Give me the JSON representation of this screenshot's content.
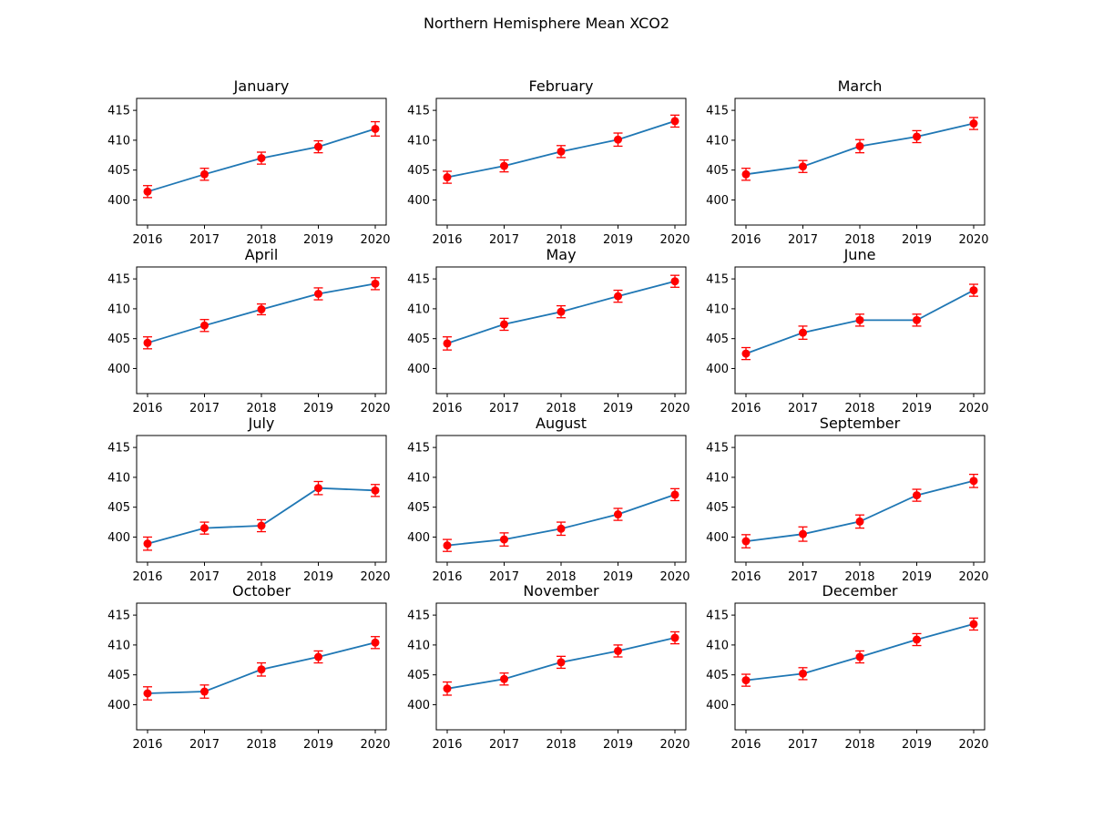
{
  "figure": {
    "suptitle": "Northern Hemisphere Mean XCO2"
  },
  "style": {
    "line_color": "#1f77b4",
    "marker_color": "#ff0000",
    "errorbar_color": "#ff0000",
    "axes_color": "#000000",
    "background": "#ffffff"
  },
  "chart_data": [
    {
      "type": "line",
      "title": "January",
      "x": [
        2016,
        2017,
        2018,
        2019,
        2020
      ],
      "y": [
        401.4,
        404.3,
        407.0,
        408.9,
        411.9
      ],
      "yerr": [
        1.0,
        1.0,
        1.0,
        1.0,
        1.2
      ],
      "xticks": [
        2016,
        2017,
        2018,
        2019,
        2020
      ],
      "yticks": [
        400,
        405,
        410,
        415
      ],
      "ylim": [
        395.8,
        417.0
      ],
      "grid": false
    },
    {
      "type": "line",
      "title": "February",
      "x": [
        2016,
        2017,
        2018,
        2019,
        2020
      ],
      "y": [
        403.8,
        405.7,
        408.1,
        410.1,
        413.2
      ],
      "yerr": [
        1.0,
        1.0,
        1.0,
        1.1,
        1.0
      ],
      "xticks": [
        2016,
        2017,
        2018,
        2019,
        2020
      ],
      "yticks": [
        400,
        405,
        410,
        415
      ],
      "ylim": [
        395.8,
        417.0
      ],
      "grid": false
    },
    {
      "type": "line",
      "title": "March",
      "x": [
        2016,
        2017,
        2018,
        2019,
        2020
      ],
      "y": [
        404.3,
        405.6,
        409.0,
        410.6,
        412.8
      ],
      "yerr": [
        1.0,
        1.0,
        1.1,
        1.0,
        1.0
      ],
      "xticks": [
        2016,
        2017,
        2018,
        2019,
        2020
      ],
      "yticks": [
        400,
        405,
        410,
        415
      ],
      "ylim": [
        395.8,
        417.0
      ],
      "grid": false
    },
    {
      "type": "line",
      "title": "April",
      "x": [
        2016,
        2017,
        2018,
        2019,
        2020
      ],
      "y": [
        404.3,
        407.2,
        409.9,
        412.5,
        414.2
      ],
      "yerr": [
        1.0,
        1.0,
        0.9,
        1.0,
        1.0
      ],
      "xticks": [
        2016,
        2017,
        2018,
        2019,
        2020
      ],
      "yticks": [
        400,
        405,
        410,
        415
      ],
      "ylim": [
        395.8,
        417.0
      ],
      "grid": false
    },
    {
      "type": "line",
      "title": "May",
      "x": [
        2016,
        2017,
        2018,
        2019,
        2020
      ],
      "y": [
        404.2,
        407.4,
        409.5,
        412.1,
        414.6
      ],
      "yerr": [
        1.1,
        1.0,
        1.0,
        1.0,
        1.0
      ],
      "xticks": [
        2016,
        2017,
        2018,
        2019,
        2020
      ],
      "yticks": [
        400,
        405,
        410,
        415
      ],
      "ylim": [
        395.8,
        417.0
      ],
      "grid": false
    },
    {
      "type": "line",
      "title": "June",
      "x": [
        2016,
        2017,
        2018,
        2019,
        2020
      ],
      "y": [
        402.5,
        406.0,
        408.1,
        408.1,
        413.1
      ],
      "yerr": [
        1.0,
        1.1,
        1.0,
        1.0,
        1.0
      ],
      "xticks": [
        2016,
        2017,
        2018,
        2019,
        2020
      ],
      "yticks": [
        400,
        405,
        410,
        415
      ],
      "ylim": [
        395.8,
        417.0
      ],
      "grid": false
    },
    {
      "type": "line",
      "title": "July",
      "x": [
        2016,
        2017,
        2018,
        2019,
        2020
      ],
      "y": [
        398.9,
        401.5,
        401.9,
        408.2,
        407.8
      ],
      "yerr": [
        1.1,
        1.0,
        1.0,
        1.1,
        1.0
      ],
      "xticks": [
        2016,
        2017,
        2018,
        2019,
        2020
      ],
      "yticks": [
        400,
        405,
        410,
        415
      ],
      "ylim": [
        395.8,
        417.0
      ],
      "grid": false
    },
    {
      "type": "line",
      "title": "August",
      "x": [
        2016,
        2017,
        2018,
        2019,
        2020
      ],
      "y": [
        398.6,
        399.6,
        401.4,
        403.8,
        407.1
      ],
      "yerr": [
        1.0,
        1.1,
        1.1,
        1.0,
        1.0
      ],
      "xticks": [
        2016,
        2017,
        2018,
        2019,
        2020
      ],
      "yticks": [
        400,
        405,
        410,
        415
      ],
      "ylim": [
        395.8,
        417.0
      ],
      "grid": false
    },
    {
      "type": "line",
      "title": "September",
      "x": [
        2016,
        2017,
        2018,
        2019,
        2020
      ],
      "y": [
        399.3,
        400.5,
        402.6,
        407.0,
        409.4
      ],
      "yerr": [
        1.1,
        1.2,
        1.1,
        1.0,
        1.1
      ],
      "xticks": [
        2016,
        2017,
        2018,
        2019,
        2020
      ],
      "yticks": [
        400,
        405,
        410,
        415
      ],
      "ylim": [
        395.8,
        417.0
      ],
      "grid": false
    },
    {
      "type": "line",
      "title": "October",
      "x": [
        2016,
        2017,
        2018,
        2019,
        2020
      ],
      "y": [
        401.9,
        402.2,
        405.9,
        408.0,
        410.4
      ],
      "yerr": [
        1.1,
        1.1,
        1.1,
        1.0,
        1.0
      ],
      "xticks": [
        2016,
        2017,
        2018,
        2019,
        2020
      ],
      "yticks": [
        400,
        405,
        410,
        415
      ],
      "ylim": [
        395.8,
        417.0
      ],
      "grid": false
    },
    {
      "type": "line",
      "title": "November",
      "x": [
        2016,
        2017,
        2018,
        2019,
        2020
      ],
      "y": [
        402.7,
        404.3,
        407.1,
        409.0,
        411.2
      ],
      "yerr": [
        1.1,
        1.0,
        1.0,
        1.0,
        1.0
      ],
      "xticks": [
        2016,
        2017,
        2018,
        2019,
        2020
      ],
      "yticks": [
        400,
        405,
        410,
        415
      ],
      "ylim": [
        395.8,
        417.0
      ],
      "grid": false
    },
    {
      "type": "line",
      "title": "December",
      "x": [
        2016,
        2017,
        2018,
        2019,
        2020
      ],
      "y": [
        404.1,
        405.2,
        408.0,
        410.9,
        413.5
      ],
      "yerr": [
        1.0,
        1.0,
        1.0,
        1.0,
        1.0
      ],
      "xticks": [
        2016,
        2017,
        2018,
        2019,
        2020
      ],
      "yticks": [
        400,
        405,
        410,
        415
      ],
      "ylim": [
        395.8,
        417.0
      ],
      "grid": false
    }
  ]
}
